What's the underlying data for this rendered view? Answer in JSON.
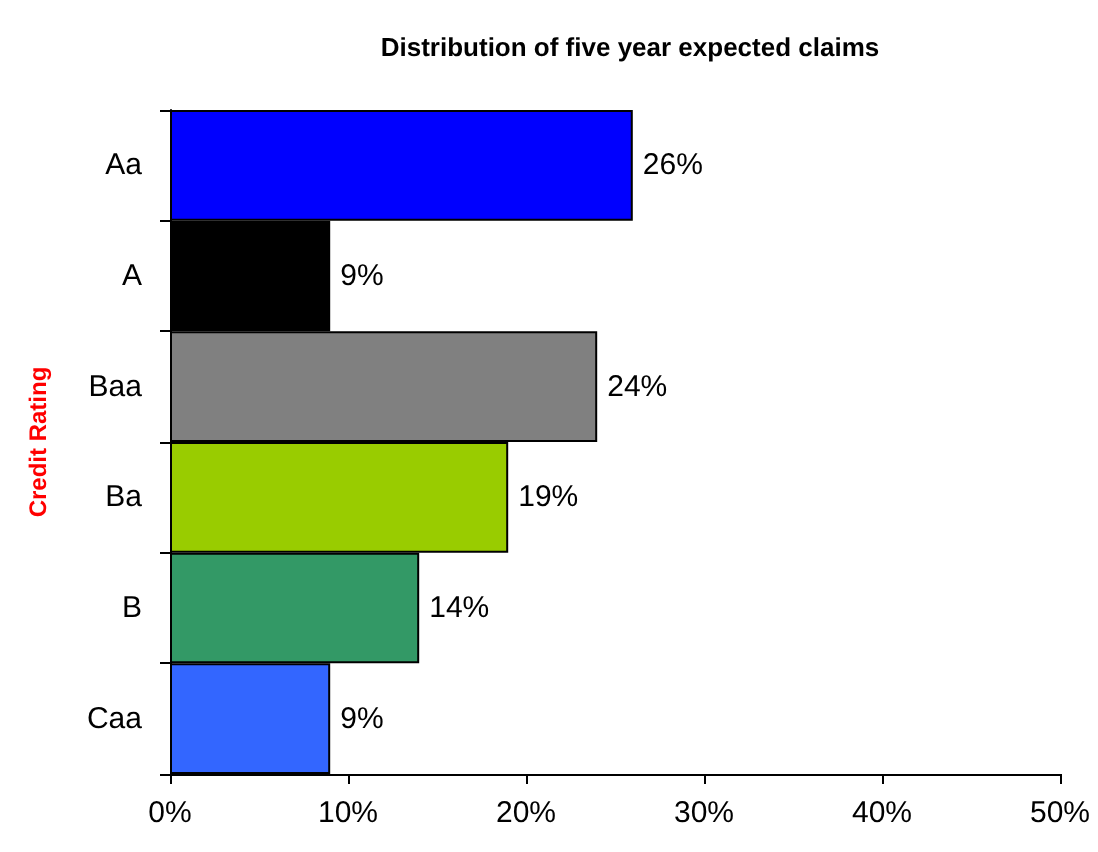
{
  "chart_data": {
    "type": "bar",
    "orientation": "horizontal",
    "title": "Distribution of five year expected claims",
    "ylabel": "Credit Rating",
    "categories": [
      "Aa",
      "A",
      "Baa",
      "Ba",
      "B",
      "Caa"
    ],
    "values": [
      26,
      9,
      24,
      19,
      14,
      9
    ],
    "colors": [
      "#0000ff",
      "#000000",
      "#808080",
      "#99cc00",
      "#339966",
      "#3366ff"
    ],
    "value_labels": [
      "26%",
      "9%",
      "24%",
      "19%",
      "14%",
      "9%"
    ],
    "xlim": [
      0,
      50
    ],
    "xticks": [
      {
        "value": 0,
        "label": "0%"
      },
      {
        "value": 10,
        "label": "10%"
      },
      {
        "value": 20,
        "label": "20%"
      },
      {
        "value": 30,
        "label": "30%"
      },
      {
        "value": 40,
        "label": "40%"
      },
      {
        "value": 50,
        "label": "50%"
      }
    ],
    "grid": false
  }
}
